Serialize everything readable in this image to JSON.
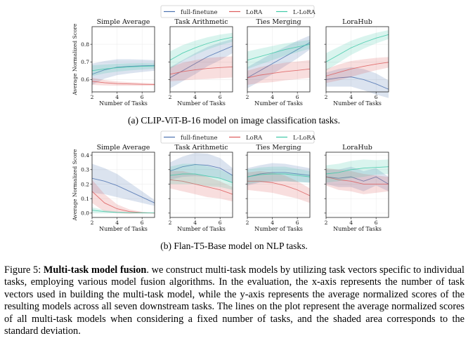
{
  "figure": {
    "legend": [
      "full-finetune",
      "LoRA",
      "L-LoRA"
    ],
    "colors": {
      "full-finetune": "#4c72b0",
      "LoRA": "#dd5c5c",
      "L-LoRA": "#3fc9a8"
    },
    "subcaption_a": "(a) CLIP-ViT-B-16 model on image classification tasks.",
    "subcaption_b": "(b) Flan-T5-Base model on NLP tasks.",
    "caption": {
      "label": "Figure 5:",
      "title": "Multi-task model fusion",
      "body": ". we construct multi-task models by utilizing task vectors specific to individual tasks, employing various model fusion algorithms. In the evaluation, the x-axis represents the number of task vectors used in building the multi-task model, while the y-axis represents the average normalized scores of the resulting models across all seven downstream tasks. The lines on the plot represent the average normalized scores of all multi-task models when considering a fixed number of tasks, and the shaded area corresponds to the standard deviation."
    }
  },
  "chart_data": [
    {
      "type": "line",
      "group": "a",
      "title": "Simple Average",
      "xlabel": "Number of Tasks",
      "ylabel": "Average Normalized Score",
      "xlim": [
        2,
        7
      ],
      "ylim": [
        0.53,
        0.9
      ],
      "xticks": [
        2,
        4,
        6
      ],
      "yticks": [
        0.6,
        0.7,
        0.8
      ],
      "ytick_labels": [
        "0.6",
        "0.7",
        "0.8"
      ],
      "x": [
        2,
        3,
        4,
        5,
        6,
        7
      ],
      "series": [
        {
          "name": "full-finetune",
          "values": [
            0.63,
            0.655,
            0.67,
            0.675,
            0.678,
            0.68
          ],
          "std": [
            0.06,
            0.05,
            0.045,
            0.04,
            0.035,
            0.03
          ]
        },
        {
          "name": "LoRA",
          "values": [
            0.59,
            0.582,
            0.577,
            0.575,
            0.573,
            0.572
          ],
          "std": [
            0.02,
            0.015,
            0.012,
            0.01,
            0.008,
            0.006
          ]
        },
        {
          "name": "L-LoRA",
          "values": [
            0.65,
            0.66,
            0.667,
            0.672,
            0.675,
            0.677
          ],
          "std": [
            0.03,
            0.025,
            0.022,
            0.02,
            0.018,
            0.015
          ]
        }
      ]
    },
    {
      "type": "line",
      "group": "a",
      "title": "Task Arithmetic",
      "xlabel": "Number of Tasks",
      "ylabel": "",
      "xlim": [
        2,
        7
      ],
      "ylim": [
        0.53,
        0.9
      ],
      "xticks": [
        2,
        4,
        6
      ],
      "yticks": [
        0.6,
        0.7,
        0.8
      ],
      "ytick_labels": [
        "",
        "",
        ""
      ],
      "x": [
        2,
        3,
        4,
        5,
        6,
        7
      ],
      "series": [
        {
          "name": "full-finetune",
          "values": [
            0.61,
            0.65,
            0.69,
            0.73,
            0.76,
            0.79
          ],
          "std": [
            0.06,
            0.06,
            0.06,
            0.055,
            0.05,
            0.04
          ]
        },
        {
          "name": "LoRA",
          "values": [
            0.63,
            0.645,
            0.655,
            0.663,
            0.668,
            0.672
          ],
          "std": [
            0.04,
            0.05,
            0.055,
            0.06,
            0.06,
            0.06
          ]
        },
        {
          "name": "L-LoRA",
          "values": [
            0.71,
            0.75,
            0.78,
            0.805,
            0.825,
            0.84
          ],
          "std": [
            0.05,
            0.045,
            0.04,
            0.035,
            0.03,
            0.025
          ]
        }
      ]
    },
    {
      "type": "line",
      "group": "a",
      "title": "Ties Merging",
      "xlabel": "Number of Tasks",
      "ylabel": "",
      "xlim": [
        2,
        7
      ],
      "ylim": [
        0.53,
        0.9
      ],
      "xticks": [
        2,
        4,
        6
      ],
      "yticks": [
        0.6,
        0.7,
        0.8
      ],
      "ytick_labels": [
        "",
        "",
        ""
      ],
      "x": [
        2,
        3,
        4,
        5,
        6,
        7
      ],
      "series": [
        {
          "name": "full-finetune",
          "values": [
            0.61,
            0.65,
            0.69,
            0.73,
            0.77,
            0.81
          ],
          "std": [
            0.06,
            0.06,
            0.06,
            0.055,
            0.05,
            0.04
          ]
        },
        {
          "name": "LoRA",
          "values": [
            0.61,
            0.625,
            0.635,
            0.645,
            0.652,
            0.66
          ],
          "std": [
            0.04,
            0.045,
            0.05,
            0.05,
            0.05,
            0.05
          ]
        },
        {
          "name": "L-LoRA",
          "values": [
            0.71,
            0.73,
            0.75,
            0.77,
            0.785,
            0.8
          ],
          "std": [
            0.05,
            0.045,
            0.04,
            0.035,
            0.03,
            0.025
          ]
        }
      ]
    },
    {
      "type": "line",
      "group": "a",
      "title": "LoraHub",
      "xlabel": "Number of Tasks",
      "ylabel": "",
      "xlim": [
        2,
        7
      ],
      "ylim": [
        0.53,
        0.9
      ],
      "xticks": [
        2,
        4,
        6
      ],
      "yticks": [
        0.6,
        0.7,
        0.8
      ],
      "ytick_labels": [
        "",
        "",
        ""
      ],
      "x": [
        2,
        3,
        4,
        5,
        6,
        7
      ],
      "series": [
        {
          "name": "full-finetune",
          "values": [
            0.6,
            0.61,
            0.615,
            0.6,
            0.575,
            0.545
          ],
          "std": [
            0.04,
            0.05,
            0.055,
            0.06,
            0.06,
            0.05
          ]
        },
        {
          "name": "LoRA",
          "values": [
            0.62,
            0.64,
            0.66,
            0.675,
            0.688,
            0.698
          ],
          "std": [
            0.04,
            0.045,
            0.045,
            0.04,
            0.035,
            0.03
          ]
        },
        {
          "name": "L-LoRA",
          "values": [
            0.7,
            0.74,
            0.78,
            0.81,
            0.835,
            0.855
          ],
          "std": [
            0.05,
            0.045,
            0.04,
            0.035,
            0.03,
            0.025
          ]
        }
      ]
    },
    {
      "type": "line",
      "group": "b",
      "title": "Simple Average",
      "xlabel": "Number of Tasks",
      "ylabel": "Average Normalized Score",
      "xlim": [
        2,
        7
      ],
      "ylim": [
        -0.03,
        0.42
      ],
      "xticks": [
        2,
        4,
        6
      ],
      "yticks": [
        0.0,
        0.1,
        0.2,
        0.3,
        0.4
      ],
      "ytick_labels": [
        "0.0",
        "0.1",
        "0.2",
        "0.3",
        "0.4"
      ],
      "x": [
        2,
        3,
        4,
        5,
        6,
        7
      ],
      "series": [
        {
          "name": "full-finetune",
          "values": [
            0.24,
            0.22,
            0.19,
            0.15,
            0.11,
            0.07
          ],
          "std": [
            0.1,
            0.09,
            0.08,
            0.06,
            0.04,
            0.02
          ]
        },
        {
          "name": "LoRA",
          "values": [
            0.15,
            0.07,
            0.03,
            0.01,
            0.003,
            0.0
          ],
          "std": [
            0.08,
            0.06,
            0.03,
            0.015,
            0.005,
            0.002
          ]
        },
        {
          "name": "L-LoRA",
          "values": [
            0.02,
            0.01,
            0.005,
            0.003,
            0.002,
            0.001
          ],
          "std": [
            0.02,
            0.01,
            0.005,
            0.003,
            0.002,
            0.001
          ]
        }
      ]
    },
    {
      "type": "line",
      "group": "b",
      "title": "Task Arithmetic",
      "xlabel": "Number of Tasks",
      "ylabel": "",
      "xlim": [
        2,
        7
      ],
      "ylim": [
        -0.03,
        0.42
      ],
      "xticks": [
        2,
        4,
        6
      ],
      "yticks": [
        0.0,
        0.1,
        0.2,
        0.3,
        0.4
      ],
      "ytick_labels": [
        "",
        "",
        "",
        "",
        ""
      ],
      "x": [
        2,
        3,
        4,
        5,
        6,
        7
      ],
      "series": [
        {
          "name": "full-finetune",
          "values": [
            0.29,
            0.32,
            0.335,
            0.33,
            0.31,
            0.26
          ],
          "std": [
            0.06,
            0.07,
            0.08,
            0.08,
            0.07,
            0.05
          ]
        },
        {
          "name": "LoRA",
          "values": [
            0.23,
            0.22,
            0.2,
            0.18,
            0.16,
            0.13
          ],
          "std": [
            0.06,
            0.07,
            0.07,
            0.07,
            0.06,
            0.05
          ]
        },
        {
          "name": "L-LoRA",
          "values": [
            0.26,
            0.27,
            0.27,
            0.255,
            0.24,
            0.21
          ],
          "std": [
            0.06,
            0.07,
            0.07,
            0.07,
            0.06,
            0.05
          ]
        }
      ]
    },
    {
      "type": "line",
      "group": "b",
      "title": "Ties Merging",
      "xlabel": "Number of Tasks",
      "ylabel": "",
      "xlim": [
        2,
        7
      ],
      "ylim": [
        -0.03,
        0.42
      ],
      "xticks": [
        2,
        4,
        6
      ],
      "yticks": [
        0.0,
        0.1,
        0.2,
        0.3,
        0.4
      ],
      "ytick_labels": [
        "",
        "",
        "",
        "",
        ""
      ],
      "x": [
        2,
        3,
        4,
        5,
        6,
        7
      ],
      "series": [
        {
          "name": "full-finetune",
          "values": [
            0.25,
            0.27,
            0.28,
            0.28,
            0.27,
            0.26
          ],
          "std": [
            0.06,
            0.06,
            0.065,
            0.06,
            0.055,
            0.05
          ]
        },
        {
          "name": "LoRA",
          "values": [
            0.22,
            0.22,
            0.21,
            0.19,
            0.16,
            0.12
          ],
          "std": [
            0.06,
            0.07,
            0.07,
            0.07,
            0.06,
            0.05
          ]
        },
        {
          "name": "L-LoRA",
          "values": [
            0.25,
            0.265,
            0.27,
            0.27,
            0.26,
            0.25
          ],
          "std": [
            0.05,
            0.05,
            0.05,
            0.05,
            0.045,
            0.04
          ]
        }
      ]
    },
    {
      "type": "line",
      "group": "b",
      "title": "LoraHub",
      "xlabel": "Number of Tasks",
      "ylabel": "",
      "xlim": [
        2,
        7
      ],
      "ylim": [
        -0.03,
        0.42
      ],
      "xticks": [
        2,
        4,
        6
      ],
      "yticks": [
        0.0,
        0.1,
        0.2,
        0.3,
        0.4
      ],
      "ytick_labels": [
        "",
        "",
        "",
        "",
        ""
      ],
      "x": [
        2,
        3,
        4,
        5,
        6,
        7
      ],
      "series": [
        {
          "name": "full-finetune",
          "values": [
            0.25,
            0.24,
            0.25,
            0.22,
            0.25,
            0.2
          ],
          "std": [
            0.05,
            0.06,
            0.07,
            0.07,
            0.06,
            0.05
          ]
        },
        {
          "name": "LoRA",
          "values": [
            0.25,
            0.23,
            0.22,
            0.2,
            0.2,
            0.2
          ],
          "std": [
            0.06,
            0.07,
            0.07,
            0.07,
            0.06,
            0.05
          ]
        },
        {
          "name": "L-LoRA",
          "values": [
            0.27,
            0.28,
            0.3,
            0.31,
            0.315,
            0.32
          ],
          "std": [
            0.06,
            0.06,
            0.06,
            0.06,
            0.05,
            0.05
          ]
        }
      ]
    }
  ]
}
